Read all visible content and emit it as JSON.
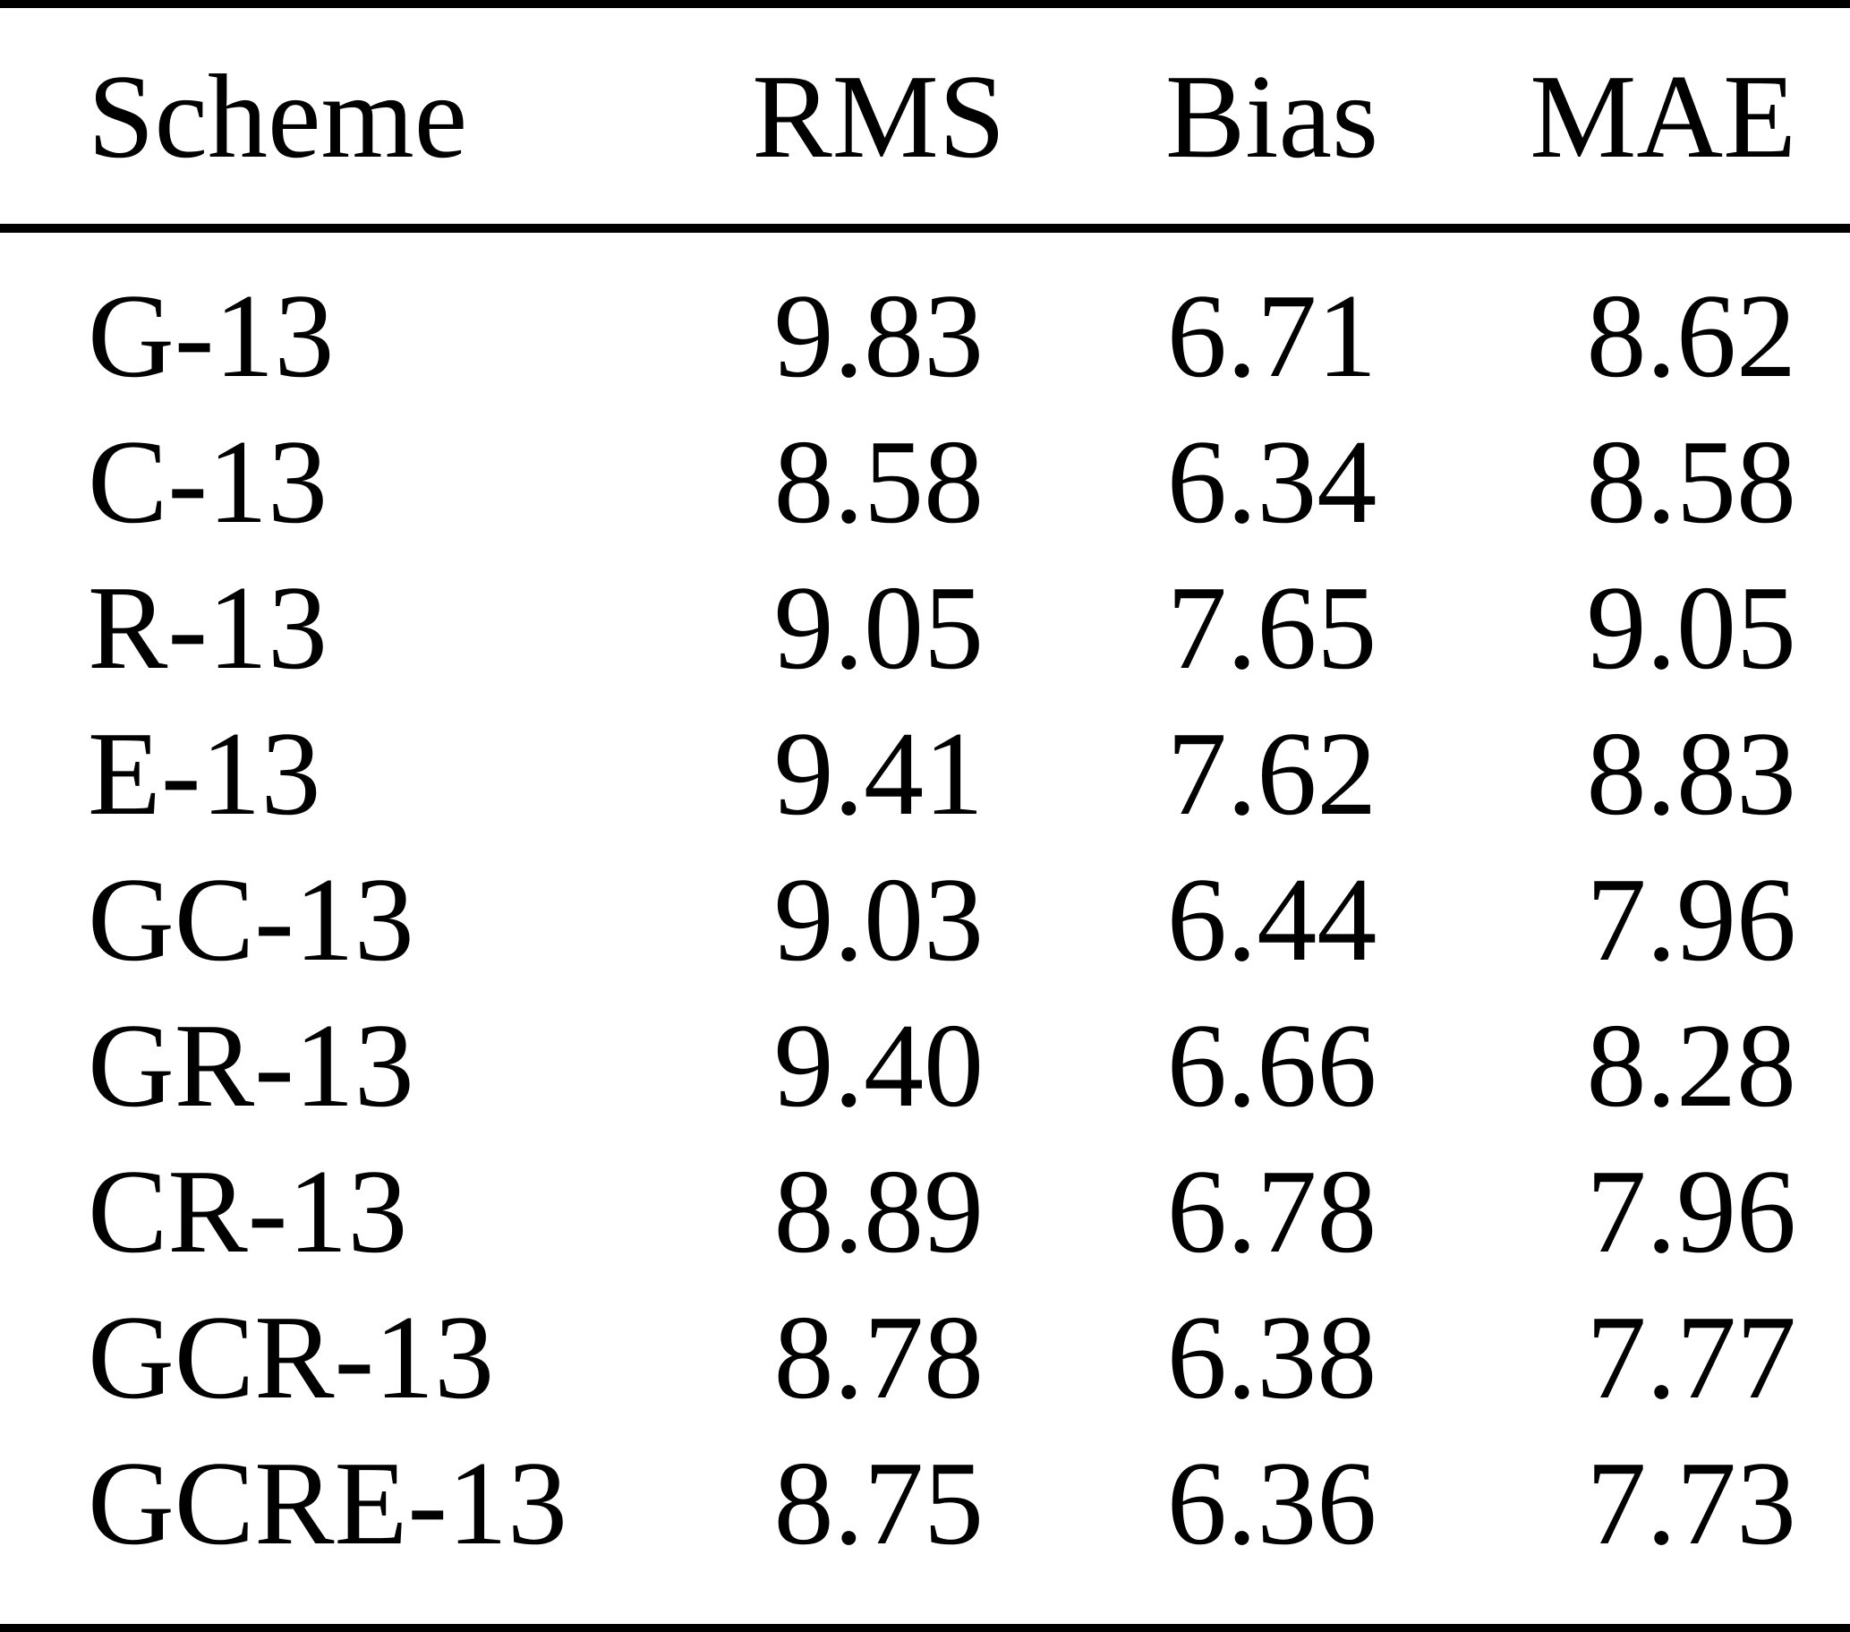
{
  "colors": {
    "background": "#ffffff",
    "text": "#000000",
    "rule": "#000000"
  },
  "table": {
    "columns": [
      "Scheme",
      "RMS",
      "Bias",
      "MAE"
    ],
    "rows": [
      {
        "scheme": "G-13",
        "rms": "9.83",
        "bias": "6.71",
        "mae": "8.62"
      },
      {
        "scheme": "C-13",
        "rms": "8.58",
        "bias": "6.34",
        "mae": "8.58"
      },
      {
        "scheme": "R-13",
        "rms": "9.05",
        "bias": "7.65",
        "mae": "9.05"
      },
      {
        "scheme": "E-13",
        "rms": "9.41",
        "bias": "7.62",
        "mae": "8.83"
      },
      {
        "scheme": "GC-13",
        "rms": "9.03",
        "bias": "6.44",
        "mae": "7.96"
      },
      {
        "scheme": "GR-13",
        "rms": "9.40",
        "bias": "6.66",
        "mae": "8.28"
      },
      {
        "scheme": "CR-13",
        "rms": "8.89",
        "bias": "6.78",
        "mae": "7.96"
      },
      {
        "scheme": "GCR-13",
        "rms": "8.78",
        "bias": "6.38",
        "mae": "7.77"
      },
      {
        "scheme": "GCRE-13",
        "rms": "8.75",
        "bias": "6.36",
        "mae": "7.73"
      }
    ]
  }
}
